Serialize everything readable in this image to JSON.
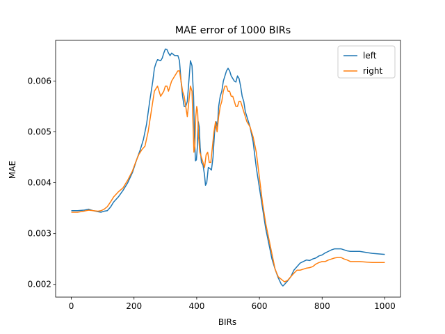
{
  "chart_data": {
    "type": "line",
    "title": "MAE error of 1000 BIRs",
    "xlabel": "BIRs",
    "ylabel": "MAE",
    "xlim": [
      -50,
      1050
    ],
    "ylim": [
      0.00175,
      0.0068
    ],
    "xticks": [
      0,
      200,
      400,
      600,
      800,
      1000
    ],
    "yticks": [
      0.002,
      0.003,
      0.004,
      0.005,
      0.006
    ],
    "xtick_labels": [
      "0",
      "200",
      "400",
      "600",
      "800",
      "1000"
    ],
    "ytick_labels": [
      "0.002",
      "0.003",
      "0.004",
      "0.005",
      "0.006"
    ],
    "grid": false,
    "legend_position": "top-right",
    "series": [
      {
        "name": "left",
        "color": "#1f77b4",
        "points": [
          [
            0,
            0.00345
          ],
          [
            20,
            0.00345
          ],
          [
            40,
            0.00346
          ],
          [
            55,
            0.00348
          ],
          [
            70,
            0.00345
          ],
          [
            85,
            0.00343
          ],
          [
            95,
            0.00342
          ],
          [
            105,
            0.00344
          ],
          [
            115,
            0.00345
          ],
          [
            125,
            0.00352
          ],
          [
            135,
            0.00362
          ],
          [
            150,
            0.00372
          ],
          [
            165,
            0.00385
          ],
          [
            180,
            0.004
          ],
          [
            195,
            0.0042
          ],
          [
            210,
            0.00448
          ],
          [
            220,
            0.00465
          ],
          [
            230,
            0.00485
          ],
          [
            240,
            0.00515
          ],
          [
            250,
            0.0056
          ],
          [
            260,
            0.006
          ],
          [
            265,
            0.00625
          ],
          [
            270,
            0.00635
          ],
          [
            275,
            0.00642
          ],
          [
            285,
            0.0064
          ],
          [
            290,
            0.00645
          ],
          [
            295,
            0.00655
          ],
          [
            300,
            0.00663
          ],
          [
            305,
            0.00662
          ],
          [
            310,
            0.00655
          ],
          [
            315,
            0.0065
          ],
          [
            320,
            0.00655
          ],
          [
            330,
            0.0065
          ],
          [
            340,
            0.0065
          ],
          [
            345,
            0.0064
          ],
          [
            350,
            0.006
          ],
          [
            355,
            0.0057
          ],
          [
            360,
            0.0055
          ],
          [
            365,
            0.0055
          ],
          [
            370,
            0.0056
          ],
          [
            375,
            0.006
          ],
          [
            380,
            0.0064
          ],
          [
            385,
            0.0063
          ],
          [
            390,
            0.0057
          ],
          [
            393,
            0.0049
          ],
          [
            396,
            0.00443
          ],
          [
            399,
            0.00445
          ],
          [
            402,
            0.0047
          ],
          [
            405,
            0.0052
          ],
          [
            408,
            0.0051
          ],
          [
            411,
            0.0047
          ],
          [
            415,
            0.0044
          ],
          [
            420,
            0.00435
          ],
          [
            425,
            0.00415
          ],
          [
            428,
            0.00395
          ],
          [
            432,
            0.004
          ],
          [
            437,
            0.0043
          ],
          [
            442,
            0.00428
          ],
          [
            447,
            0.00425
          ],
          [
            452,
            0.0045
          ],
          [
            457,
            0.005
          ],
          [
            462,
            0.0052
          ],
          [
            466,
            0.0051
          ],
          [
            470,
            0.0055
          ],
          [
            475,
            0.0057
          ],
          [
            480,
            0.0058
          ],
          [
            485,
            0.006
          ],
          [
            490,
            0.0061
          ],
          [
            495,
            0.0062
          ],
          [
            500,
            0.00625
          ],
          [
            505,
            0.0062
          ],
          [
            510,
            0.0061
          ],
          [
            515,
            0.00605
          ],
          [
            520,
            0.006
          ],
          [
            525,
            0.00598
          ],
          [
            530,
            0.0061
          ],
          [
            535,
            0.00605
          ],
          [
            540,
            0.0059
          ],
          [
            545,
            0.0057
          ],
          [
            550,
            0.0056
          ],
          [
            555,
            0.0054
          ],
          [
            560,
            0.0053
          ],
          [
            570,
            0.0051
          ],
          [
            580,
            0.0048
          ],
          [
            590,
            0.0043
          ],
          [
            600,
            0.0039
          ],
          [
            610,
            0.0035
          ],
          [
            620,
            0.0031
          ],
          [
            630,
            0.0028
          ],
          [
            640,
            0.0025
          ],
          [
            650,
            0.0023
          ],
          [
            660,
            0.00213
          ],
          [
            670,
            0.002
          ],
          [
            675,
            0.00197
          ],
          [
            680,
            0.002
          ],
          [
            690,
            0.00207
          ],
          [
            700,
            0.00215
          ],
          [
            710,
            0.00228
          ],
          [
            720,
            0.00235
          ],
          [
            730,
            0.00242
          ],
          [
            740,
            0.00245
          ],
          [
            750,
            0.00248
          ],
          [
            760,
            0.00247
          ],
          [
            770,
            0.0025
          ],
          [
            780,
            0.00252
          ],
          [
            790,
            0.00256
          ],
          [
            800,
            0.00258
          ],
          [
            810,
            0.00262
          ],
          [
            820,
            0.00265
          ],
          [
            830,
            0.00268
          ],
          [
            840,
            0.0027
          ],
          [
            850,
            0.0027
          ],
          [
            860,
            0.0027
          ],
          [
            870,
            0.00268
          ],
          [
            880,
            0.00266
          ],
          [
            890,
            0.00265
          ],
          [
            900,
            0.00265
          ],
          [
            920,
            0.00265
          ],
          [
            940,
            0.00263
          ],
          [
            960,
            0.00261
          ],
          [
            980,
            0.0026
          ],
          [
            1000,
            0.00259
          ]
        ]
      },
      {
        "name": "right",
        "color": "#ff7f0e",
        "points": [
          [
            0,
            0.00342
          ],
          [
            20,
            0.00342
          ],
          [
            40,
            0.00344
          ],
          [
            55,
            0.00346
          ],
          [
            70,
            0.00345
          ],
          [
            85,
            0.00344
          ],
          [
            95,
            0.00345
          ],
          [
            105,
            0.00348
          ],
          [
            115,
            0.00353
          ],
          [
            125,
            0.00362
          ],
          [
            135,
            0.00372
          ],
          [
            150,
            0.00382
          ],
          [
            165,
            0.0039
          ],
          [
            180,
            0.00405
          ],
          [
            195,
            0.00423
          ],
          [
            205,
            0.0044
          ],
          [
            215,
            0.00455
          ],
          [
            225,
            0.00465
          ],
          [
            235,
            0.00472
          ],
          [
            245,
            0.005
          ],
          [
            255,
            0.0054
          ],
          [
            265,
            0.0058
          ],
          [
            275,
            0.0059
          ],
          [
            285,
            0.0057
          ],
          [
            295,
            0.0058
          ],
          [
            300,
            0.0059
          ],
          [
            305,
            0.0059
          ],
          [
            310,
            0.0058
          ],
          [
            315,
            0.0059
          ],
          [
            320,
            0.006
          ],
          [
            330,
            0.0061
          ],
          [
            340,
            0.0062
          ],
          [
            345,
            0.0062
          ],
          [
            350,
            0.006
          ],
          [
            355,
            0.0058
          ],
          [
            360,
            0.0057
          ],
          [
            365,
            0.0055
          ],
          [
            370,
            0.0053
          ],
          [
            375,
            0.0056
          ],
          [
            380,
            0.0059
          ],
          [
            385,
            0.0058
          ],
          [
            388,
            0.0052
          ],
          [
            391,
            0.0046
          ],
          [
            394,
            0.0047
          ],
          [
            397,
            0.0053
          ],
          [
            400,
            0.0055
          ],
          [
            403,
            0.0054
          ],
          [
            406,
            0.0049
          ],
          [
            410,
            0.0046
          ],
          [
            415,
            0.0045
          ],
          [
            420,
            0.0044
          ],
          [
            425,
            0.0043
          ],
          [
            430,
            0.00455
          ],
          [
            435,
            0.0046
          ],
          [
            440,
            0.0044
          ],
          [
            445,
            0.0044
          ],
          [
            450,
            0.0047
          ],
          [
            455,
            0.005
          ],
          [
            460,
            0.0052
          ],
          [
            465,
            0.005
          ],
          [
            470,
            0.0053
          ],
          [
            475,
            0.0055
          ],
          [
            480,
            0.0056
          ],
          [
            485,
            0.0058
          ],
          [
            490,
            0.0059
          ],
          [
            495,
            0.0059
          ],
          [
            500,
            0.0058
          ],
          [
            505,
            0.0058
          ],
          [
            510,
            0.0057
          ],
          [
            515,
            0.0057
          ],
          [
            520,
            0.0056
          ],
          [
            525,
            0.0055
          ],
          [
            530,
            0.0055
          ],
          [
            535,
            0.0056
          ],
          [
            540,
            0.0056
          ],
          [
            545,
            0.0055
          ],
          [
            550,
            0.0054
          ],
          [
            560,
            0.0052
          ],
          [
            570,
            0.0051
          ],
          [
            580,
            0.0049
          ],
          [
            590,
            0.0046
          ],
          [
            600,
            0.0041
          ],
          [
            610,
            0.0036
          ],
          [
            620,
            0.0032
          ],
          [
            630,
            0.0029
          ],
          [
            640,
            0.0026
          ],
          [
            650,
            0.0023
          ],
          [
            660,
            0.00215
          ],
          [
            670,
            0.0021
          ],
          [
            680,
            0.00205
          ],
          [
            690,
            0.00208
          ],
          [
            700,
            0.00215
          ],
          [
            710,
            0.00222
          ],
          [
            720,
            0.00228
          ],
          [
            730,
            0.00228
          ],
          [
            740,
            0.0023
          ],
          [
            750,
            0.00232
          ],
          [
            760,
            0.00233
          ],
          [
            770,
            0.00235
          ],
          [
            780,
            0.0024
          ],
          [
            790,
            0.00243
          ],
          [
            800,
            0.00245
          ],
          [
            810,
            0.00245
          ],
          [
            820,
            0.00248
          ],
          [
            830,
            0.0025
          ],
          [
            840,
            0.00252
          ],
          [
            850,
            0.00253
          ],
          [
            860,
            0.00253
          ],
          [
            870,
            0.0025
          ],
          [
            880,
            0.00248
          ],
          [
            890,
            0.00245
          ],
          [
            900,
            0.00245
          ],
          [
            920,
            0.00245
          ],
          [
            940,
            0.00244
          ],
          [
            960,
            0.00243
          ],
          [
            980,
            0.00243
          ],
          [
            1000,
            0.00243
          ]
        ]
      }
    ]
  }
}
